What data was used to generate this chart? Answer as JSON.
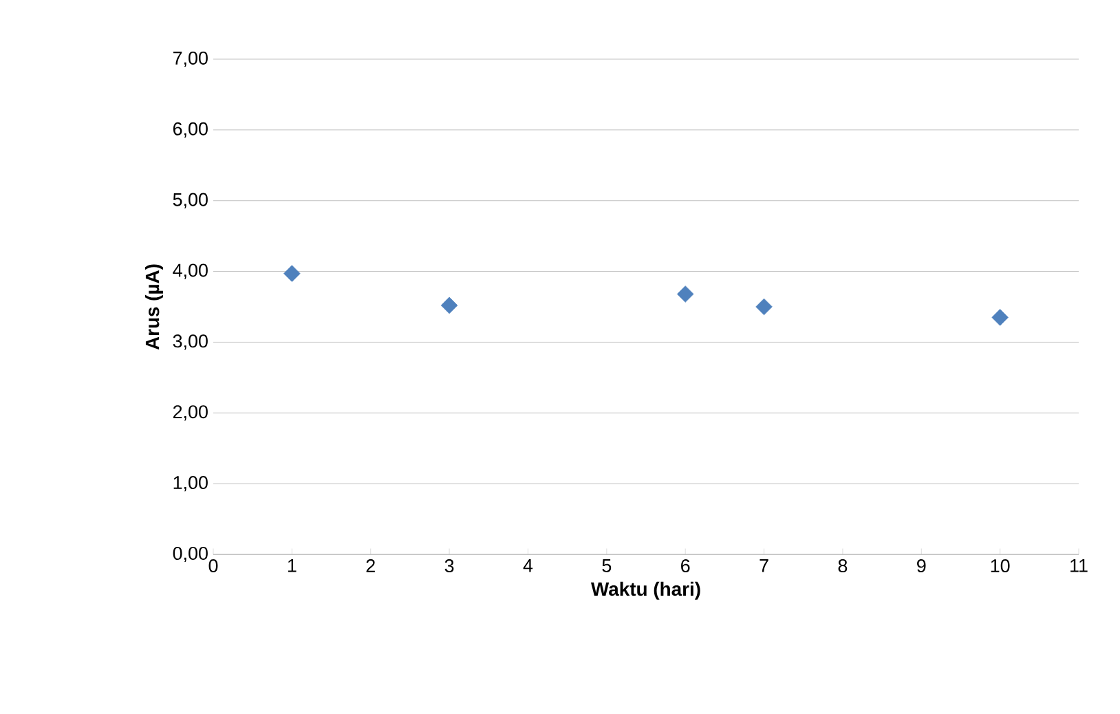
{
  "chart_data": {
    "type": "scatter",
    "xlabel": "Waktu (hari)",
    "ylabel": "Arus (µA)",
    "x": [
      1,
      3,
      6,
      7,
      10
    ],
    "series": [
      {
        "color": "#4f81bd",
        "values": [
          3.97,
          3.52,
          3.68,
          3.5,
          3.35
        ]
      }
    ],
    "xlim": [
      0,
      11
    ],
    "xticks": [
      0,
      1,
      2,
      3,
      4,
      5,
      6,
      7,
      8,
      9,
      10,
      11
    ],
    "ylim": [
      0,
      7
    ],
    "yticks": [
      {
        "value": 0,
        "label": "0,00"
      },
      {
        "value": 1,
        "label": "1,00"
      },
      {
        "value": 2,
        "label": "2,00"
      },
      {
        "value": 3,
        "label": "3,00"
      },
      {
        "value": 4,
        "label": "4,00"
      },
      {
        "value": 5,
        "label": "5,00"
      },
      {
        "value": 6,
        "label": "6,00"
      },
      {
        "value": 7,
        "label": "7,00"
      }
    ],
    "grid": "y",
    "marker": "diamond"
  }
}
